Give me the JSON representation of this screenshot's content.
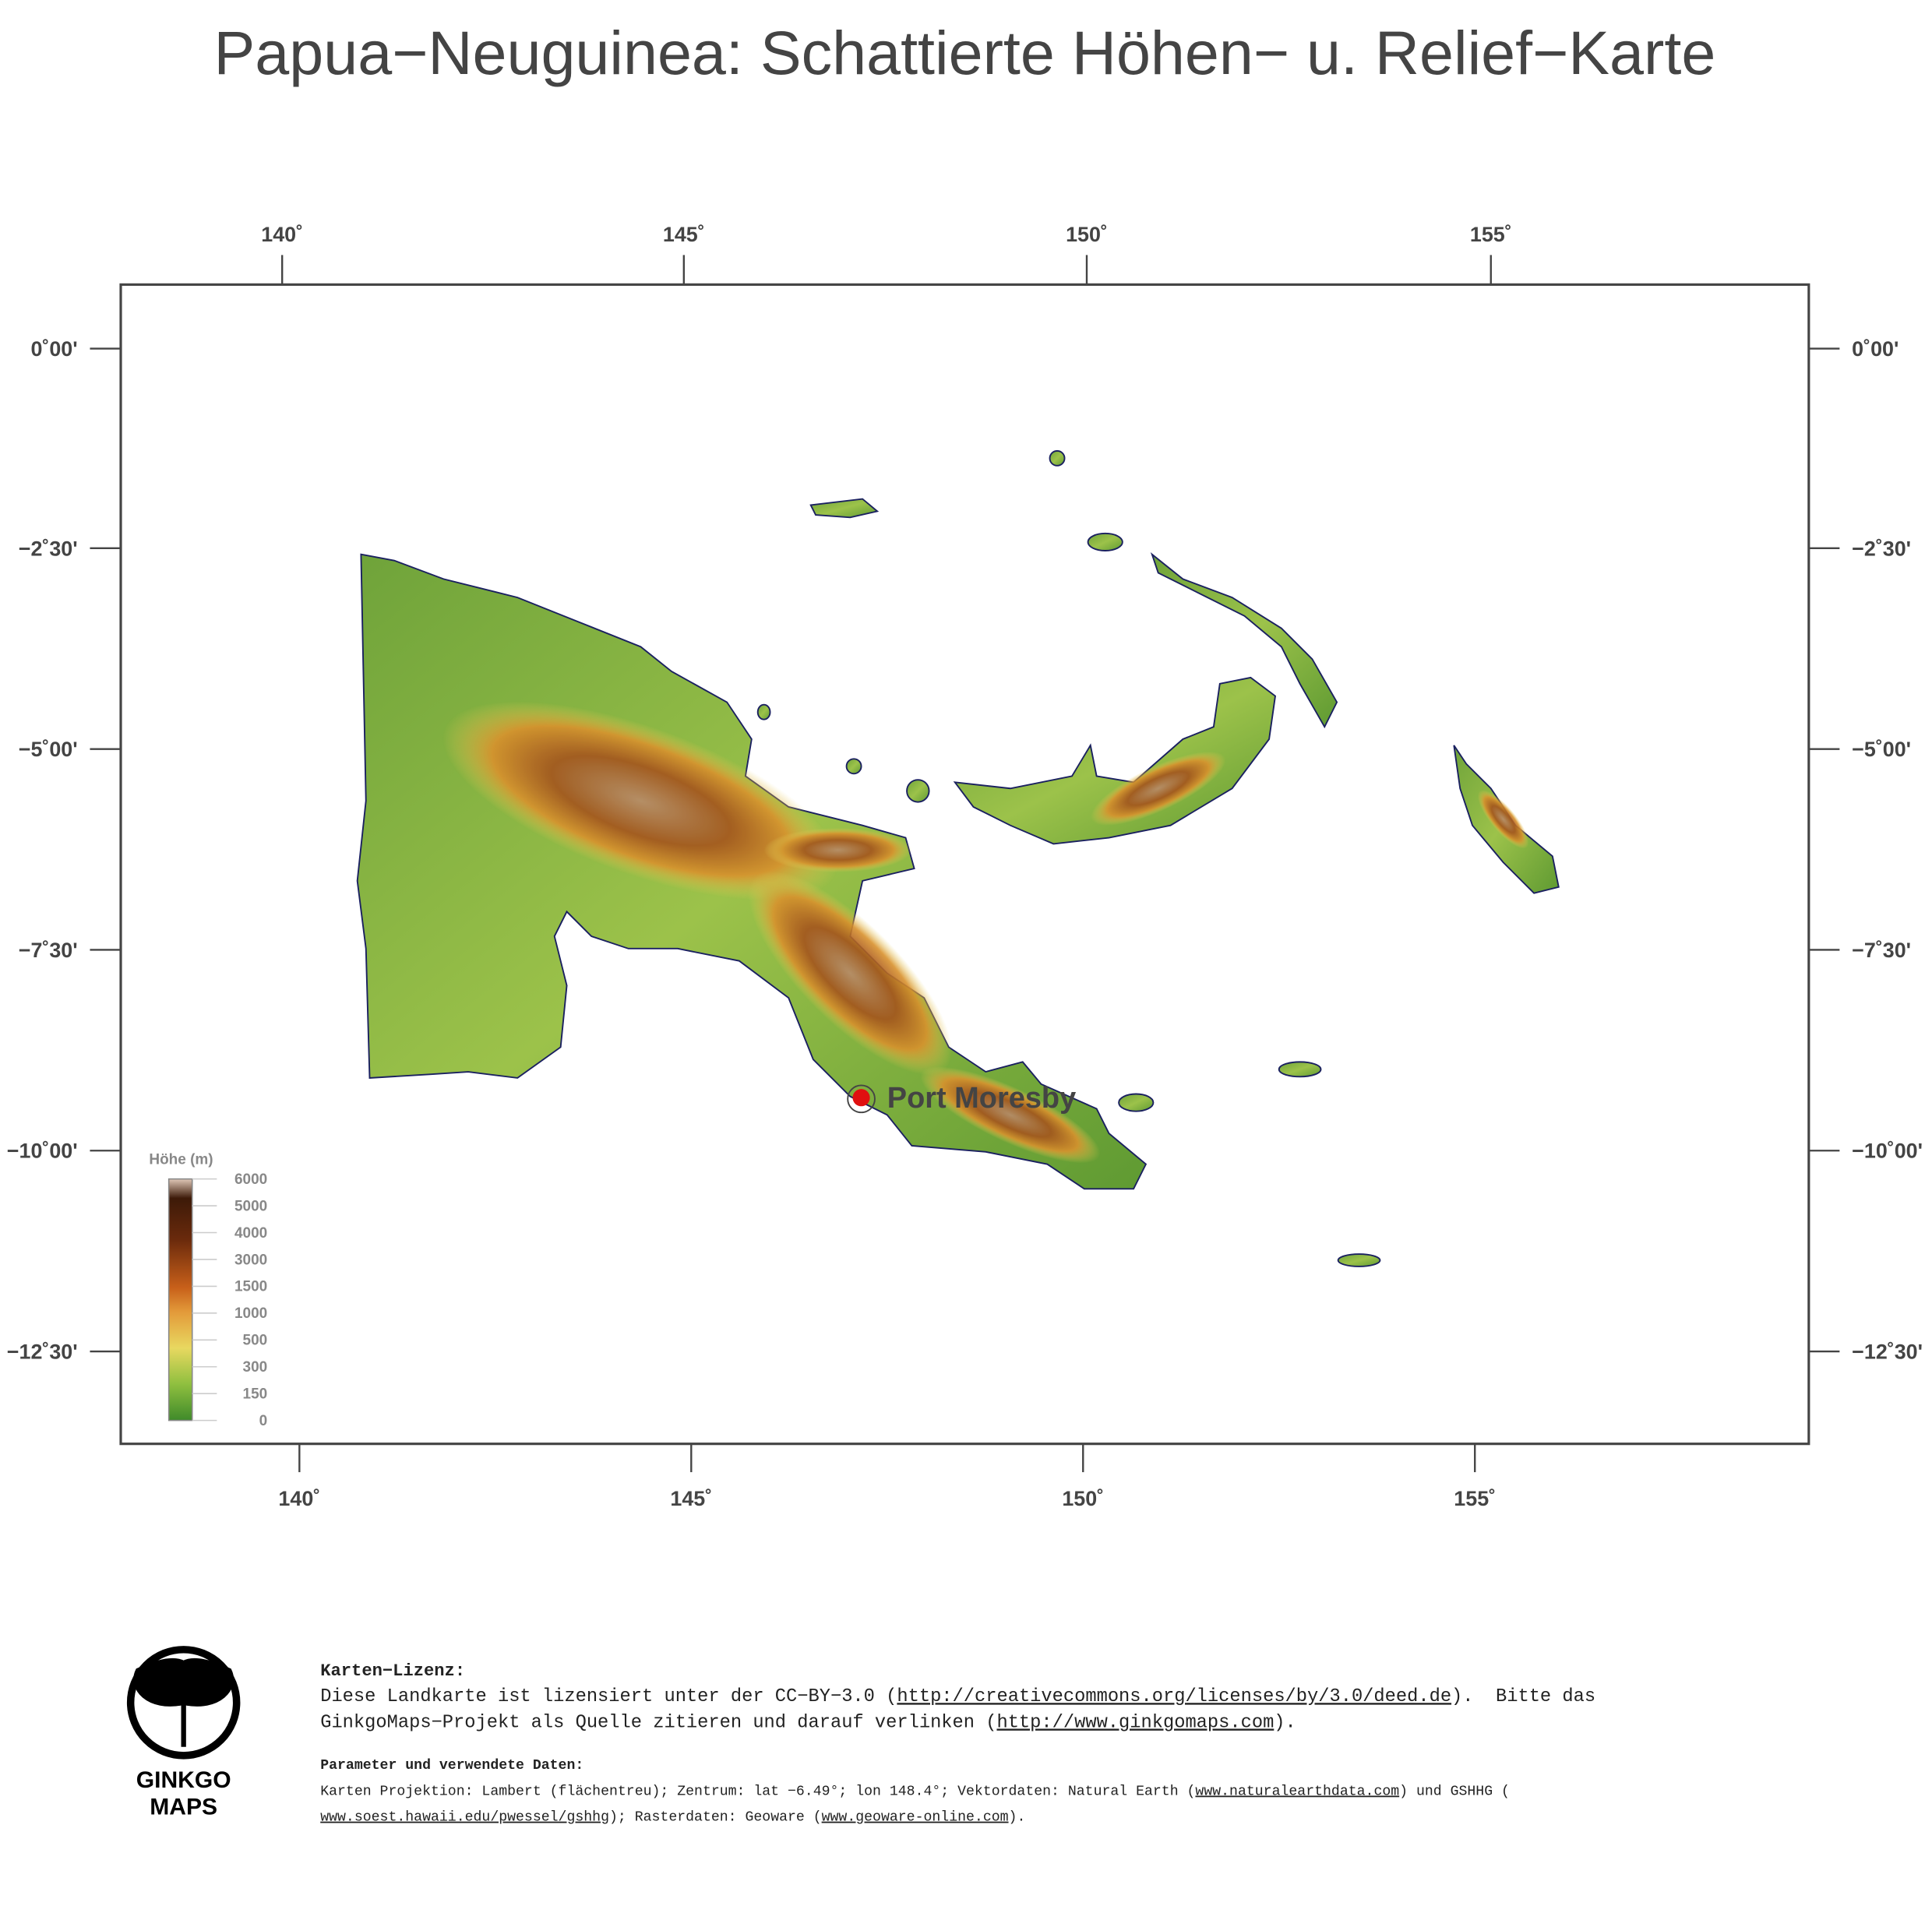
{
  "title": "Papua−Neuguinea: Schattierte Höhen− u. Relief−Karte",
  "lon_labels_top": [
    "140˚",
    "145˚",
    "150˚",
    "155˚"
  ],
  "lon_labels_bottom": [
    "140˚",
    "145˚",
    "150˚",
    "155˚"
  ],
  "lat_labels_left": [
    "0˚00'",
    "−2˚30'",
    "−5˚00'",
    "−7˚30'",
    "−10˚00'",
    "−12˚30'"
  ],
  "lat_labels_right": [
    "0˚00'",
    "−2˚30'",
    "−5˚00'",
    "−7˚30'",
    "−10˚00'",
    "−12˚30'"
  ],
  "legend": {
    "title": "Höhe (m)",
    "labels": [
      "6000",
      "5000",
      "4000",
      "3000",
      "1500",
      "1000",
      "500",
      "300",
      "150",
      "0"
    ]
  },
  "city": "Port Moresby",
  "logo": {
    "line1": "GINKGO",
    "line2": "MAPS"
  },
  "license": {
    "heading": "Karten−Lizenz:",
    "line1": [
      "Diese Landkarte ist lizensiert unter der CC−BY−3.0 (",
      "http://creativecommons.org/licenses/by/3.0/deed.de",
      ").  Bitte das"
    ],
    "line2": [
      "GinkgoMaps−Projekt als Quelle zitieren und darauf verlinken (",
      "http://www.ginkgomaps.com",
      ")."
    ]
  },
  "params": {
    "heading": "Parameter und verwendete Daten:",
    "line1": [
      "Karten Projektion: Lambert (flächentreu); Zentrum: lat −6.49°; lon 148.4°; Vektordaten: Natural Earth (",
      "www.naturalearthdata.com",
      ") und GSHHG ("
    ],
    "line2": [
      "www.soest.hawaii.edu/pwessel/gshhg",
      "); Rasterdaten: Geoware (",
      "www.geoware-online.com",
      ")."
    ]
  }
}
